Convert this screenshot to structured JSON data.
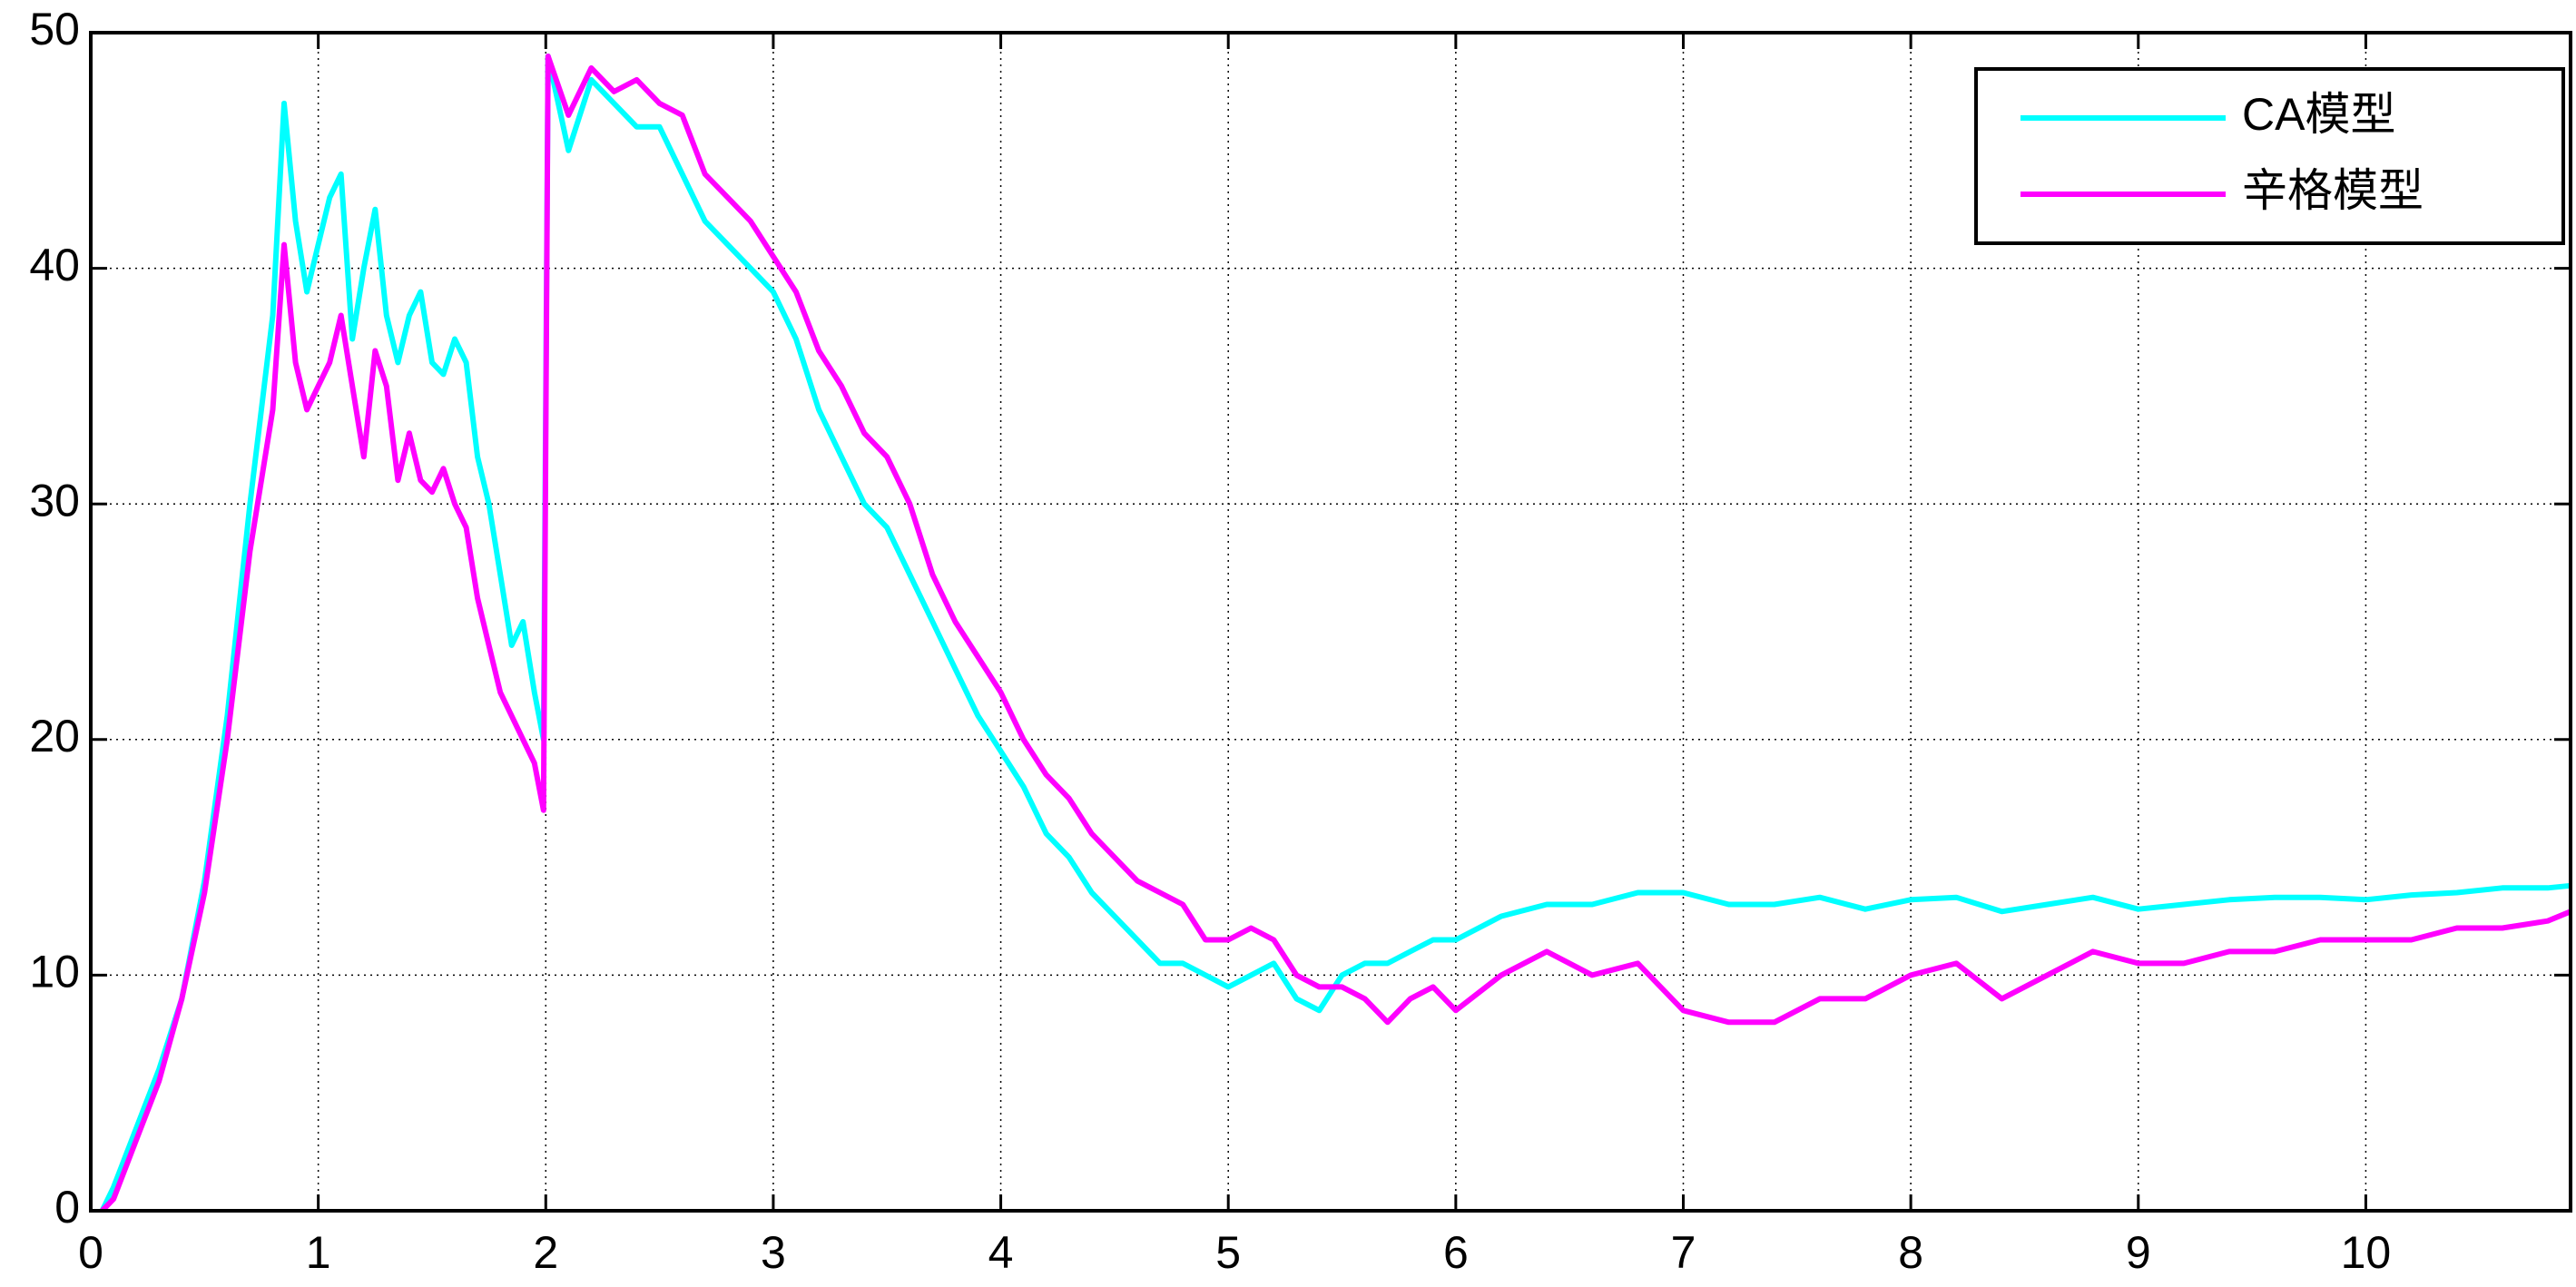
{
  "chart_data": {
    "type": "line",
    "x": [
      0.05,
      0.1,
      0.2,
      0.3,
      0.4,
      0.5,
      0.6,
      0.7,
      0.8,
      0.85,
      0.9,
      0.95,
      1.0,
      1.05,
      1.1,
      1.15,
      1.2,
      1.25,
      1.3,
      1.35,
      1.4,
      1.45,
      1.5,
      1.55,
      1.6,
      1.65,
      1.7,
      1.75,
      1.8,
      1.85,
      1.9,
      1.95,
      1.99,
      2.01,
      2.1,
      2.2,
      2.3,
      2.4,
      2.5,
      2.6,
      2.7,
      2.8,
      2.9,
      3.0,
      3.1,
      3.2,
      3.3,
      3.4,
      3.5,
      3.6,
      3.7,
      3.8,
      3.9,
      4.0,
      4.1,
      4.2,
      4.3,
      4.4,
      4.5,
      4.6,
      4.7,
      4.8,
      4.9,
      5.0,
      5.1,
      5.2,
      5.3,
      5.4,
      5.5,
      5.6,
      5.7,
      5.8,
      5.9,
      6.0,
      6.2,
      6.4,
      6.6,
      6.8,
      7.0,
      7.2,
      7.4,
      7.6,
      7.8,
      8.0,
      8.2,
      8.4,
      8.6,
      8.8,
      9.0,
      9.2,
      9.4,
      9.6,
      9.8,
      10.0,
      10.2,
      10.4,
      10.6,
      10.8,
      10.9
    ],
    "series": [
      {
        "name": "CA模型",
        "color": "#00ffff",
        "values": [
          0,
          1,
          3.5,
          6,
          9,
          14,
          21,
          30,
          38,
          47,
          42,
          39,
          41,
          43,
          44,
          37,
          40,
          42.5,
          38,
          36,
          38,
          39,
          36,
          35.5,
          37,
          36,
          32,
          30,
          27,
          24,
          25,
          22,
          20,
          49,
          45,
          48,
          47,
          46,
          46,
          44,
          42,
          41,
          40,
          39,
          37,
          34,
          32,
          30,
          29,
          27,
          25,
          23,
          21,
          19.5,
          18,
          16,
          15,
          13.5,
          12.5,
          11.5,
          10.5,
          10.5,
          10,
          9.5,
          10,
          10.5,
          9,
          8.5,
          10,
          10.5,
          10.5,
          11,
          11.5,
          11.5,
          12.5,
          13,
          13,
          13.5,
          13.5,
          13,
          13,
          13.3,
          12.8,
          13.2,
          13.3,
          12.7,
          13,
          13.3,
          12.8,
          13,
          13.2,
          13.3,
          13.3,
          13.2,
          13.4,
          13.5,
          13.7,
          13.7,
          13.8
        ]
      },
      {
        "name": "辛格模型",
        "color": "#ff00ff",
        "values": [
          0,
          0.5,
          3,
          5.5,
          9,
          13.5,
          20,
          28,
          34,
          41,
          36,
          34,
          35,
          36,
          38,
          35,
          32,
          36.5,
          35,
          31,
          33,
          31,
          30.5,
          31.5,
          30,
          29,
          26,
          24,
          22,
          21,
          20,
          19,
          17,
          49,
          46.5,
          48.5,
          47.5,
          48,
          47,
          46.5,
          44,
          43,
          42,
          40.5,
          39,
          36.5,
          35,
          33,
          32,
          30,
          27,
          25,
          23.5,
          22,
          20,
          18.5,
          17.5,
          16,
          15,
          14,
          13.5,
          13,
          11.5,
          11.5,
          12,
          11.5,
          10,
          9.5,
          9.5,
          9,
          8,
          9,
          9.5,
          8.5,
          10,
          11,
          10,
          10.5,
          8.5,
          8,
          8,
          9,
          9,
          10,
          10.5,
          9,
          10,
          11,
          10.5,
          10.5,
          11,
          11,
          11.5,
          11.5,
          11.5,
          12,
          12,
          12.3,
          12.7
        ]
      }
    ],
    "xlim": [
      0,
      10.9
    ],
    "ylim": [
      0,
      50
    ],
    "xticks": [
      0,
      1,
      2,
      3,
      4,
      5,
      6,
      7,
      8,
      9,
      10
    ],
    "yticks": [
      0,
      10,
      20,
      30,
      40,
      50
    ],
    "grid": true,
    "legend": "upper right"
  }
}
